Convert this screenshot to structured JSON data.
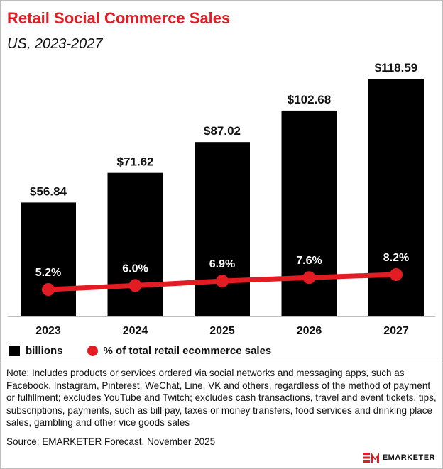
{
  "title": "Retail Social Commerce Sales",
  "subtitle": "US, 2023-2027",
  "chart_data": {
    "type": "bar",
    "title": "Retail Social Commerce Sales",
    "subtitle": "US, 2023-2027",
    "categories": [
      "2023",
      "2024",
      "2025",
      "2026",
      "2027"
    ],
    "series": [
      {
        "name": "billions",
        "type": "bar",
        "values": [
          56.84,
          71.62,
          87.02,
          102.68,
          118.59
        ],
        "labels": [
          "$56.84",
          "$71.62",
          "$87.02",
          "$102.68",
          "$118.59"
        ]
      },
      {
        "name": "% of total retail ecommerce sales",
        "type": "line",
        "values": [
          5.2,
          6.0,
          6.9,
          7.6,
          8.2
        ],
        "labels": [
          "5.2%",
          "6.0%",
          "6.9%",
          "7.6%",
          "8.2%"
        ]
      }
    ],
    "xlabel": "",
    "ylabel": "",
    "ylim": [
      0,
      118.59
    ]
  },
  "legend": {
    "bar_label": "billions",
    "line_label": "% of total retail ecommerce sales"
  },
  "note": "Note: Includes products or services ordered via social networks and messaging apps, such as Facebook, Instagram, Pinterest, WeChat, Line, VK and others, regardless of the method of payment or fulfillment; excludes YouTube and Twitch; excludes cash transactions, travel and event tickets, tips, subscriptions, payments, such as bill pay, taxes or money transfers, food services and drinking place sales, gambling and other vice goods sales",
  "source": "Source: EMARKETER Forecast, November 2025",
  "brand": {
    "name": "EMARKETER",
    "logo_text": "EM"
  },
  "colors": {
    "accent": "#e31c23",
    "bar": "#000000",
    "text": "#111111"
  }
}
